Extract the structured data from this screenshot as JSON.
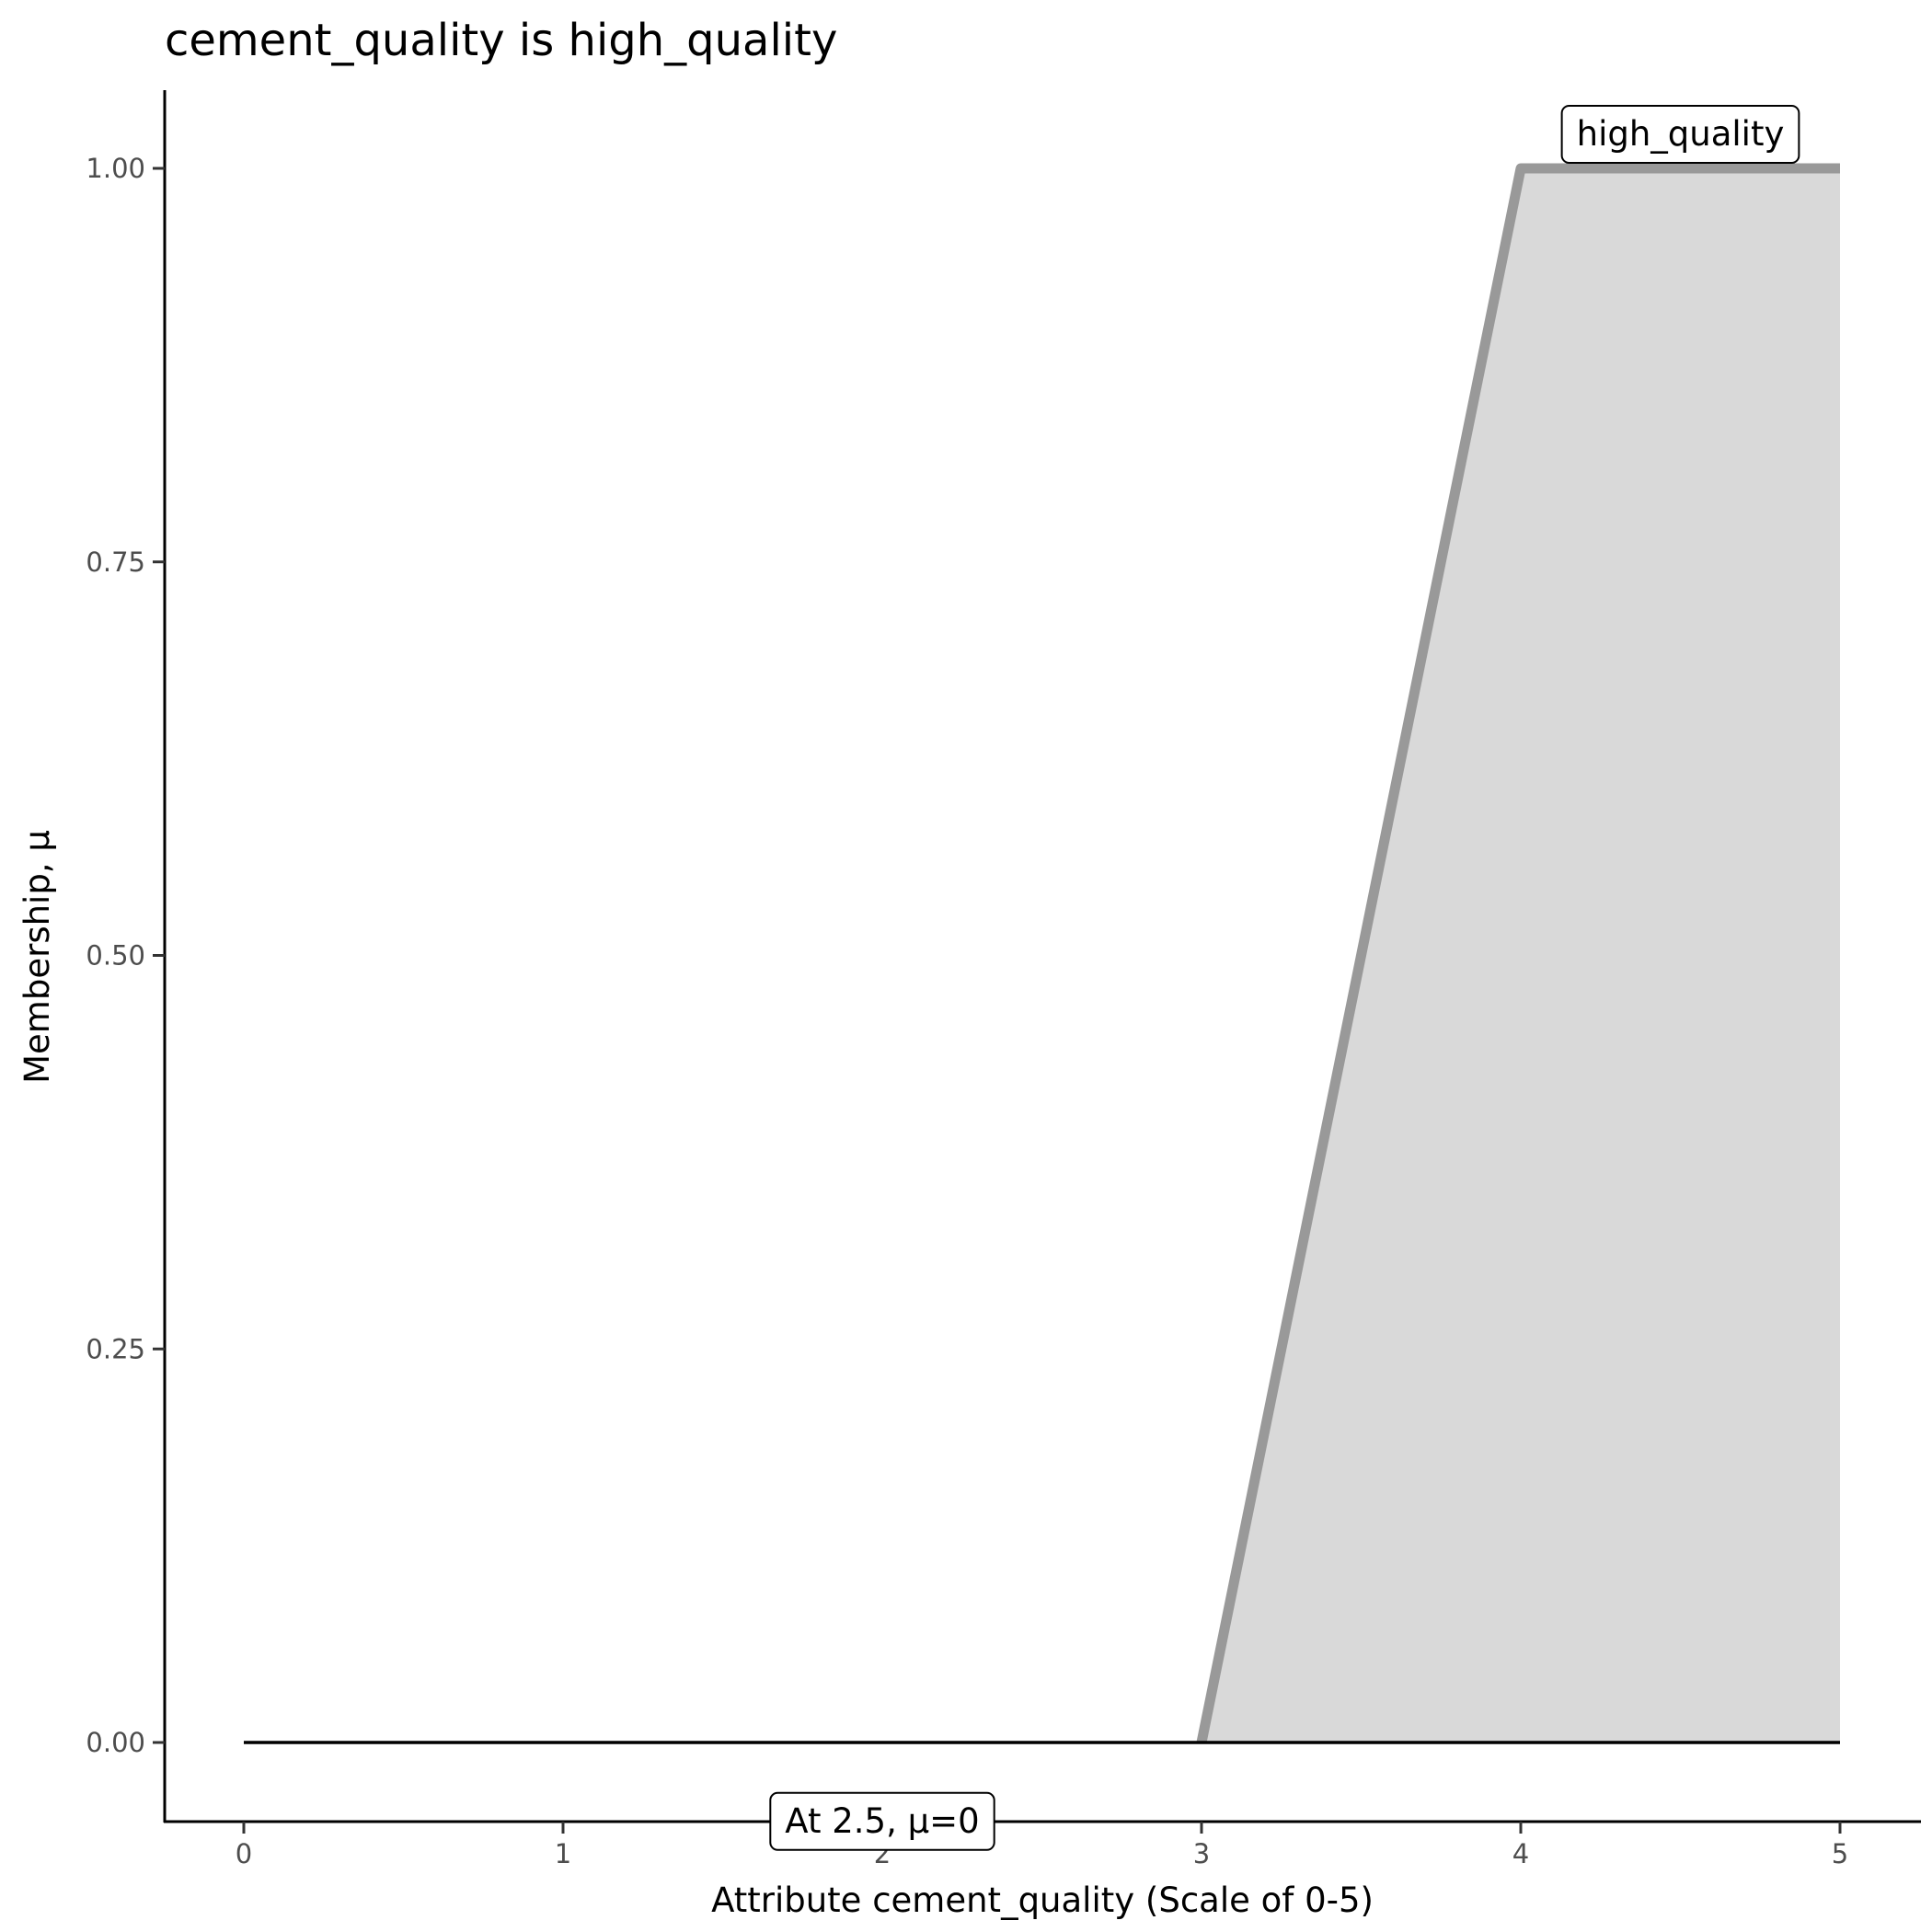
{
  "chart_data": {
    "type": "area",
    "title": "cement_quality is high_quality",
    "xlabel": "Attribute cement_quality (Scale of 0-5)",
    "ylabel": "Membership, μ",
    "xlim": [
      -0.25,
      5.25
    ],
    "ylim": [
      -0.05,
      1.05
    ],
    "x_ticks": [
      "0",
      "1",
      "2",
      "3",
      "4",
      "5"
    ],
    "y_ticks": [
      "0.00",
      "0.25",
      "0.50",
      "0.75",
      "1.00"
    ],
    "grid": false,
    "series": [
      {
        "name": "high_quality",
        "x": [
          3,
          4,
          5
        ],
        "y": [
          0,
          1,
          1
        ],
        "line_color": "#999999",
        "fill_color": "#d9d9d9"
      }
    ],
    "reference_line": {
      "x": [
        0,
        5
      ],
      "y": [
        0,
        0
      ],
      "color": "#000000"
    },
    "annotations": [
      {
        "text": "high_quality",
        "x": 4.5,
        "y": 1.0
      },
      {
        "text": "At 2.5, μ=0",
        "x": 2.0,
        "y": -0.025
      }
    ]
  }
}
